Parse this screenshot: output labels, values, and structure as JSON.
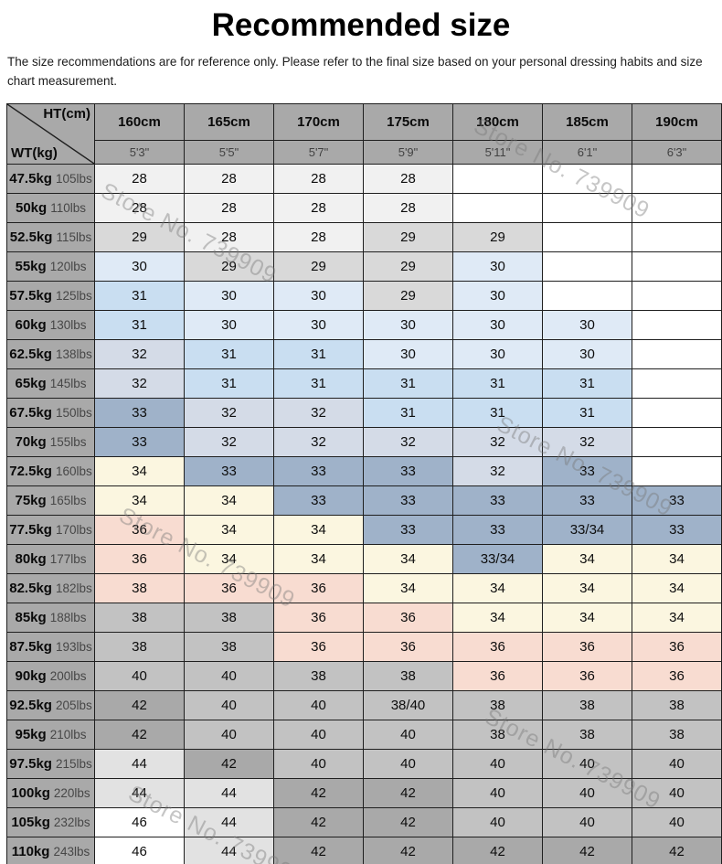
{
  "title": "Recommended size",
  "disclaimer": "The size recommendations are for reference only. Please refer to the final size based on your personal dressing habits and size chart measurement.",
  "watermark": {
    "text": "Store No. 739909"
  },
  "palette": {
    "header_bg": "#a9a9a9",
    "border": "#1f1f1f",
    "cell": {
      "": "#ffffff",
      "w": "#ffffff",
      "w2": "#f1f1f1",
      "g1": "#d9d9d9",
      "g2": "#c2c2c2",
      "g3": "#a9a9a9",
      "g4": "#e2e2e2",
      "b1": "#dfeaf6",
      "b2": "#c9def1",
      "b3": "#d4dbe7",
      "b4": "#9fb2c9",
      "c": "#fbf6e0",
      "p": "#f8dcd1"
    }
  },
  "table": {
    "corner": {
      "top_label": "HT(cm)",
      "bottom_label": "WT(kg)"
    },
    "columns": [
      {
        "cm": "160cm",
        "ft": "5'3\""
      },
      {
        "cm": "165cm",
        "ft": "5'5\""
      },
      {
        "cm": "170cm",
        "ft": "5'7\""
      },
      {
        "cm": "175cm",
        "ft": "5'9\""
      },
      {
        "cm": "180cm",
        "ft": "5'11\""
      },
      {
        "cm": "185cm",
        "ft": "6'1\""
      },
      {
        "cm": "190cm",
        "ft": "6'3\""
      }
    ],
    "rows": [
      {
        "kg": "47.5kg",
        "lbs": "105lbs",
        "cells": [
          [
            "28",
            "w2"
          ],
          [
            "28",
            "w2"
          ],
          [
            "28",
            "w2"
          ],
          [
            "28",
            "w2"
          ],
          [
            "",
            ""
          ],
          [
            "",
            ""
          ],
          [
            "",
            ""
          ]
        ]
      },
      {
        "kg": "50kg",
        "lbs": "110lbs",
        "cells": [
          [
            "28",
            "w2"
          ],
          [
            "28",
            "w2"
          ],
          [
            "28",
            "w2"
          ],
          [
            "28",
            "w2"
          ],
          [
            "",
            ""
          ],
          [
            "",
            ""
          ],
          [
            "",
            ""
          ]
        ]
      },
      {
        "kg": "52.5kg",
        "lbs": "115lbs",
        "cells": [
          [
            "29",
            "g1"
          ],
          [
            "28",
            "w2"
          ],
          [
            "28",
            "w2"
          ],
          [
            "29",
            "g1"
          ],
          [
            "29",
            "g1"
          ],
          [
            "",
            ""
          ],
          [
            "",
            ""
          ]
        ]
      },
      {
        "kg": "55kg",
        "lbs": "120lbs",
        "cells": [
          [
            "30",
            "b1"
          ],
          [
            "29",
            "g1"
          ],
          [
            "29",
            "g1"
          ],
          [
            "29",
            "g1"
          ],
          [
            "30",
            "b1"
          ],
          [
            "",
            ""
          ],
          [
            "",
            ""
          ]
        ]
      },
      {
        "kg": "57.5kg",
        "lbs": "125lbs",
        "cells": [
          [
            "31",
            "b2"
          ],
          [
            "30",
            "b1"
          ],
          [
            "30",
            "b1"
          ],
          [
            "29",
            "g1"
          ],
          [
            "30",
            "b1"
          ],
          [
            "",
            ""
          ],
          [
            "",
            ""
          ]
        ]
      },
      {
        "kg": "60kg",
        "lbs": "130lbs",
        "cells": [
          [
            "31",
            "b2"
          ],
          [
            "30",
            "b1"
          ],
          [
            "30",
            "b1"
          ],
          [
            "30",
            "b1"
          ],
          [
            "30",
            "b1"
          ],
          [
            "30",
            "b1"
          ],
          [
            "",
            ""
          ]
        ]
      },
      {
        "kg": "62.5kg",
        "lbs": "138lbs",
        "cells": [
          [
            "32",
            "b3"
          ],
          [
            "31",
            "b2"
          ],
          [
            "31",
            "b2"
          ],
          [
            "30",
            "b1"
          ],
          [
            "30",
            "b1"
          ],
          [
            "30",
            "b1"
          ],
          [
            "",
            ""
          ]
        ]
      },
      {
        "kg": "65kg",
        "lbs": "145lbs",
        "cells": [
          [
            "32",
            "b3"
          ],
          [
            "31",
            "b2"
          ],
          [
            "31",
            "b2"
          ],
          [
            "31",
            "b2"
          ],
          [
            "31",
            "b2"
          ],
          [
            "31",
            "b2"
          ],
          [
            "",
            ""
          ]
        ]
      },
      {
        "kg": "67.5kg",
        "lbs": "150lbs",
        "cells": [
          [
            "33",
            "b4"
          ],
          [
            "32",
            "b3"
          ],
          [
            "32",
            "b3"
          ],
          [
            "31",
            "b2"
          ],
          [
            "31",
            "b2"
          ],
          [
            "31",
            "b2"
          ],
          [
            "",
            ""
          ]
        ]
      },
      {
        "kg": "70kg",
        "lbs": "155lbs",
        "cells": [
          [
            "33",
            "b4"
          ],
          [
            "32",
            "b3"
          ],
          [
            "32",
            "b3"
          ],
          [
            "32",
            "b3"
          ],
          [
            "32",
            "b3"
          ],
          [
            "32",
            "b3"
          ],
          [
            "",
            ""
          ]
        ]
      },
      {
        "kg": "72.5kg",
        "lbs": "160lbs",
        "cells": [
          [
            "34",
            "c"
          ],
          [
            "33",
            "b4"
          ],
          [
            "33",
            "b4"
          ],
          [
            "33",
            "b4"
          ],
          [
            "32",
            "b3"
          ],
          [
            "33",
            "b4"
          ],
          [
            "",
            ""
          ]
        ]
      },
      {
        "kg": "75kg",
        "lbs": "165lbs",
        "cells": [
          [
            "34",
            "c"
          ],
          [
            "34",
            "c"
          ],
          [
            "33",
            "b4"
          ],
          [
            "33",
            "b4"
          ],
          [
            "33",
            "b4"
          ],
          [
            "33",
            "b4"
          ],
          [
            "33",
            "b4"
          ]
        ]
      },
      {
        "kg": "77.5kg",
        "lbs": "170lbs",
        "cells": [
          [
            "36",
            "p"
          ],
          [
            "34",
            "c"
          ],
          [
            "34",
            "c"
          ],
          [
            "33",
            "b4"
          ],
          [
            "33",
            "b4"
          ],
          [
            "33/34",
            "b4"
          ],
          [
            "33",
            "b4"
          ]
        ]
      },
      {
        "kg": "80kg",
        "lbs": "177lbs",
        "cells": [
          [
            "36",
            "p"
          ],
          [
            "34",
            "c"
          ],
          [
            "34",
            "c"
          ],
          [
            "34",
            "c"
          ],
          [
            "33/34",
            "b4"
          ],
          [
            "34",
            "c"
          ],
          [
            "34",
            "c"
          ]
        ]
      },
      {
        "kg": "82.5kg",
        "lbs": "182lbs",
        "cells": [
          [
            "38",
            "p"
          ],
          [
            "36",
            "p"
          ],
          [
            "36",
            "p"
          ],
          [
            "34",
            "c"
          ],
          [
            "34",
            "c"
          ],
          [
            "34",
            "c"
          ],
          [
            "34",
            "c"
          ]
        ]
      },
      {
        "kg": "85kg",
        "lbs": "188lbs",
        "cells": [
          [
            "38",
            "g2"
          ],
          [
            "38",
            "g2"
          ],
          [
            "36",
            "p"
          ],
          [
            "36",
            "p"
          ],
          [
            "34",
            "c"
          ],
          [
            "34",
            "c"
          ],
          [
            "34",
            "c"
          ]
        ]
      },
      {
        "kg": "87.5kg",
        "lbs": "193lbs",
        "cells": [
          [
            "38",
            "g2"
          ],
          [
            "38",
            "g2"
          ],
          [
            "36",
            "p"
          ],
          [
            "36",
            "p"
          ],
          [
            "36",
            "p"
          ],
          [
            "36",
            "p"
          ],
          [
            "36",
            "p"
          ]
        ]
      },
      {
        "kg": "90kg",
        "lbs": "200lbs",
        "cells": [
          [
            "40",
            "g2"
          ],
          [
            "40",
            "g2"
          ],
          [
            "38",
            "g2"
          ],
          [
            "38",
            "g2"
          ],
          [
            "36",
            "p"
          ],
          [
            "36",
            "p"
          ],
          [
            "36",
            "p"
          ]
        ]
      },
      {
        "kg": "92.5kg",
        "lbs": "205lbs",
        "cells": [
          [
            "42",
            "g3"
          ],
          [
            "40",
            "g2"
          ],
          [
            "40",
            "g2"
          ],
          [
            "38/40",
            "g2"
          ],
          [
            "38",
            "g2"
          ],
          [
            "38",
            "g2"
          ],
          [
            "38",
            "g2"
          ]
        ]
      },
      {
        "kg": "95kg",
        "lbs": "210lbs",
        "cells": [
          [
            "42",
            "g3"
          ],
          [
            "40",
            "g2"
          ],
          [
            "40",
            "g2"
          ],
          [
            "40",
            "g2"
          ],
          [
            "38",
            "g2"
          ],
          [
            "38",
            "g2"
          ],
          [
            "38",
            "g2"
          ]
        ]
      },
      {
        "kg": "97.5kg",
        "lbs": "215lbs",
        "cells": [
          [
            "44",
            "g4"
          ],
          [
            "42",
            "g3"
          ],
          [
            "40",
            "g2"
          ],
          [
            "40",
            "g2"
          ],
          [
            "40",
            "g2"
          ],
          [
            "40",
            "g2"
          ],
          [
            "40",
            "g2"
          ]
        ]
      },
      {
        "kg": "100kg",
        "lbs": "220lbs",
        "cells": [
          [
            "44",
            "g4"
          ],
          [
            "44",
            "g4"
          ],
          [
            "42",
            "g3"
          ],
          [
            "42",
            "g3"
          ],
          [
            "40",
            "g2"
          ],
          [
            "40",
            "g2"
          ],
          [
            "40",
            "g2"
          ]
        ]
      },
      {
        "kg": "105kg",
        "lbs": "232lbs",
        "cells": [
          [
            "46",
            "w"
          ],
          [
            "44",
            "g4"
          ],
          [
            "42",
            "g3"
          ],
          [
            "42",
            "g3"
          ],
          [
            "40",
            "g2"
          ],
          [
            "40",
            "g2"
          ],
          [
            "40",
            "g2"
          ]
        ]
      },
      {
        "kg": "110kg",
        "lbs": "243lbs",
        "cells": [
          [
            "46",
            "w"
          ],
          [
            "44",
            "g4"
          ],
          [
            "42",
            "g3"
          ],
          [
            "42",
            "g3"
          ],
          [
            "42",
            "g3"
          ],
          [
            "42",
            "g3"
          ],
          [
            "42",
            "g3"
          ]
        ]
      }
    ]
  }
}
